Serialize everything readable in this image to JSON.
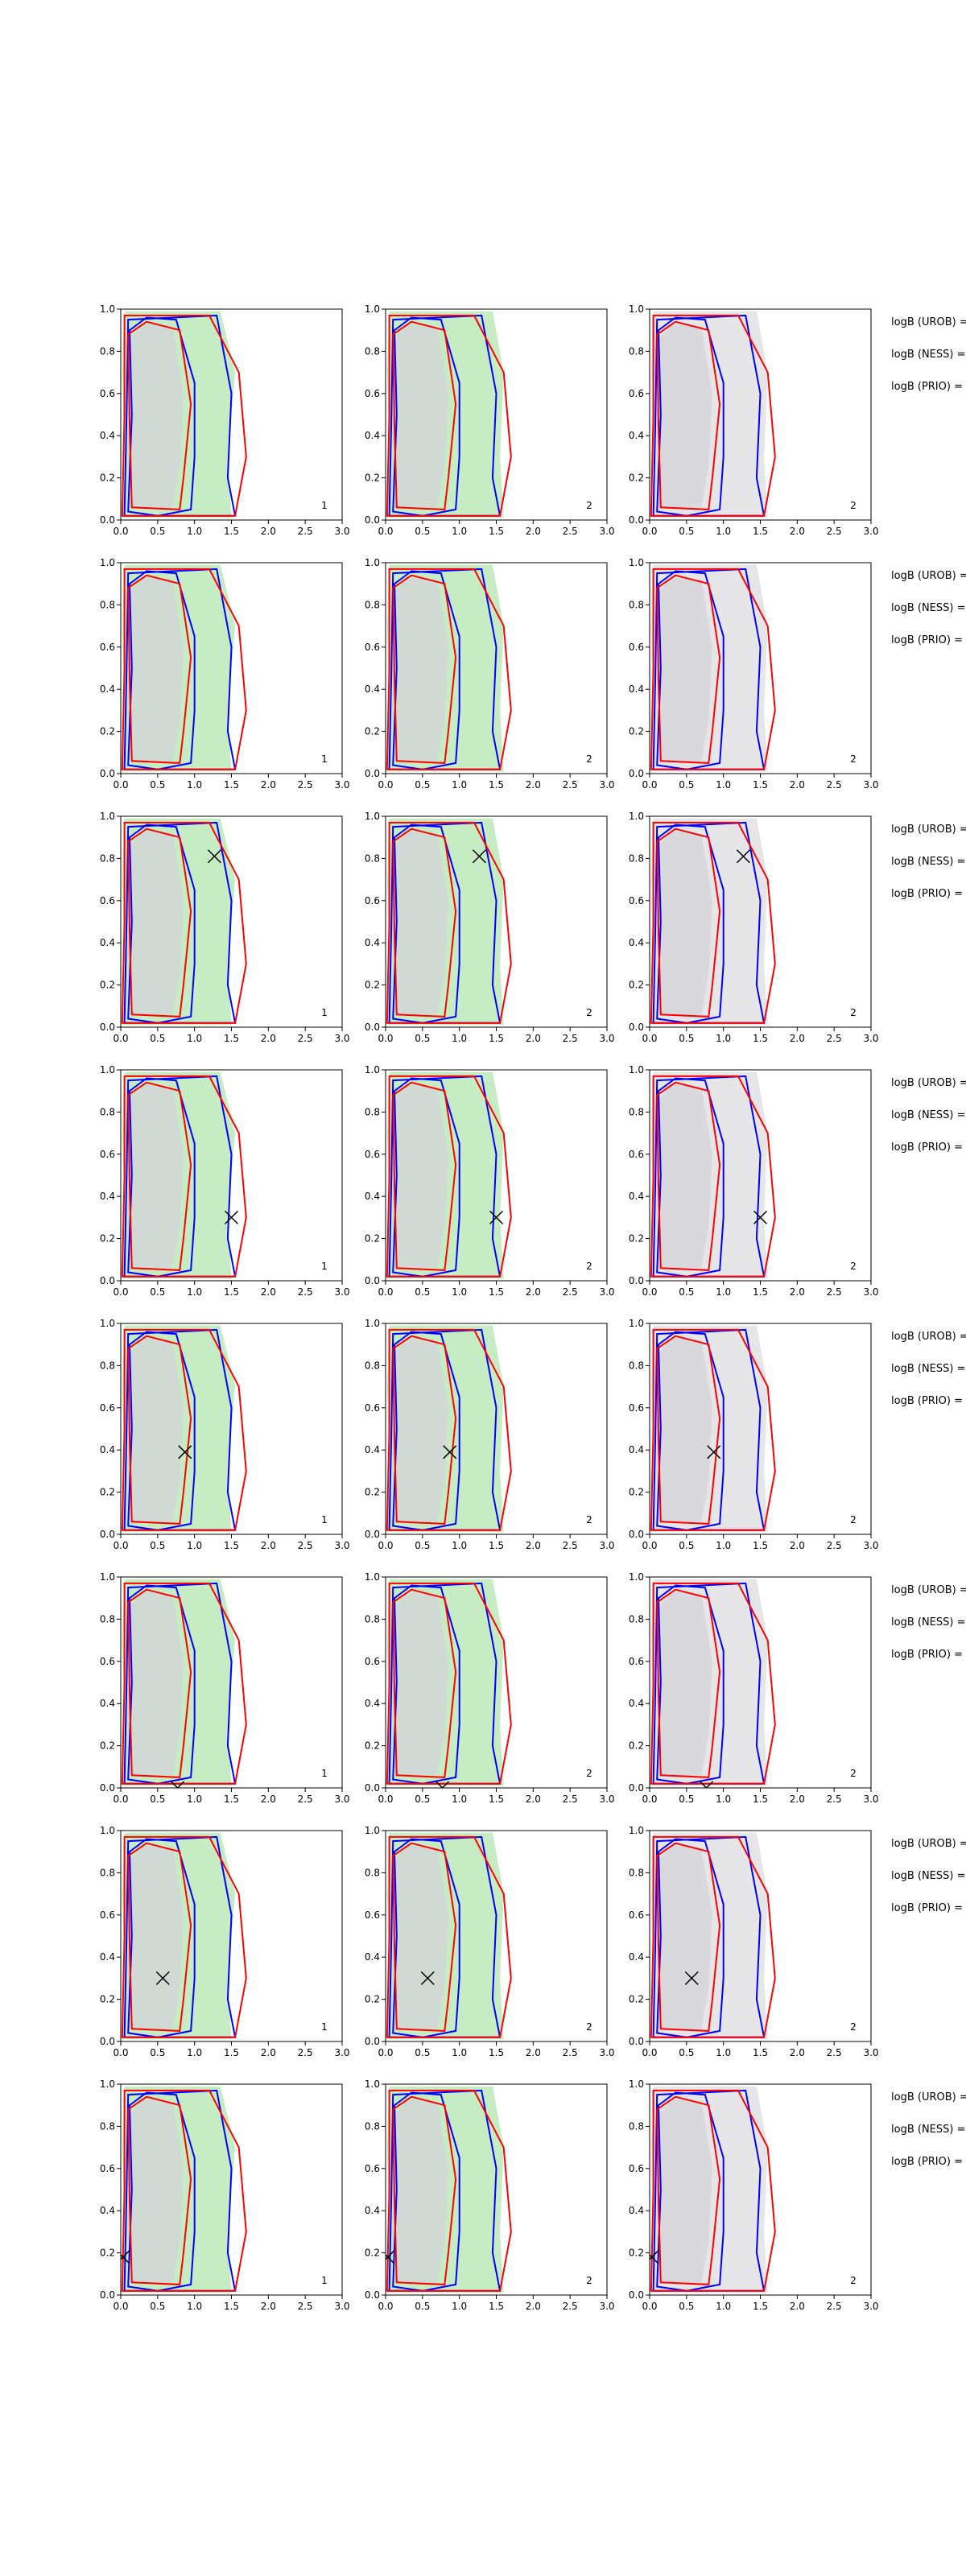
{
  "colors": {
    "posterior_fill_a": "#c6ecc4",
    "posterior_fill_b": "#e6e6e9",
    "inner_fill": "#d3d3d8",
    "contour_blue": "#0000ff",
    "contour_red": "#ff0000",
    "axis": "#000000"
  },
  "chart_data": {
    "type": "contour",
    "xlim": [
      0,
      3
    ],
    "ylim": [
      0,
      1
    ],
    "xticks": [
      "0.0",
      "0.5",
      "1.0",
      "1.5",
      "2.0",
      "2.5",
      "3.0"
    ],
    "yticks": [
      "0.0",
      "0.2",
      "0.4",
      "0.6",
      "0.8",
      "1.0"
    ],
    "grid": false,
    "legend_labels": [
      "logB (UROB) =",
      "logB (NESS) =",
      "logB (PRIO) ="
    ],
    "rows": [
      {
        "marker": null,
        "panel_labels": [
          "1",
          "2",
          "2"
        ]
      },
      {
        "marker": null,
        "panel_labels": [
          "1",
          "2",
          "2"
        ]
      },
      {
        "marker": {
          "x": 1.27,
          "y": 0.81
        },
        "panel_labels": [
          "1",
          "2",
          "2"
        ]
      },
      {
        "marker": {
          "x": 1.5,
          "y": 0.3
        },
        "panel_labels": [
          "1",
          "2",
          "2"
        ]
      },
      {
        "marker": {
          "x": 0.87,
          "y": 0.39
        },
        "panel_labels": [
          "1",
          "2",
          "2"
        ]
      },
      {
        "marker": {
          "x": 0.77,
          "y": 0.0
        },
        "panel_labels": [
          "1",
          "2",
          "2"
        ]
      },
      {
        "marker": {
          "x": 0.57,
          "y": 0.3
        },
        "panel_labels": [
          "1",
          "2",
          "2"
        ]
      },
      {
        "marker": {
          "x": 0.03,
          "y": 0.18
        },
        "panel_labels": [
          "1",
          "2",
          "2"
        ]
      }
    ]
  }
}
